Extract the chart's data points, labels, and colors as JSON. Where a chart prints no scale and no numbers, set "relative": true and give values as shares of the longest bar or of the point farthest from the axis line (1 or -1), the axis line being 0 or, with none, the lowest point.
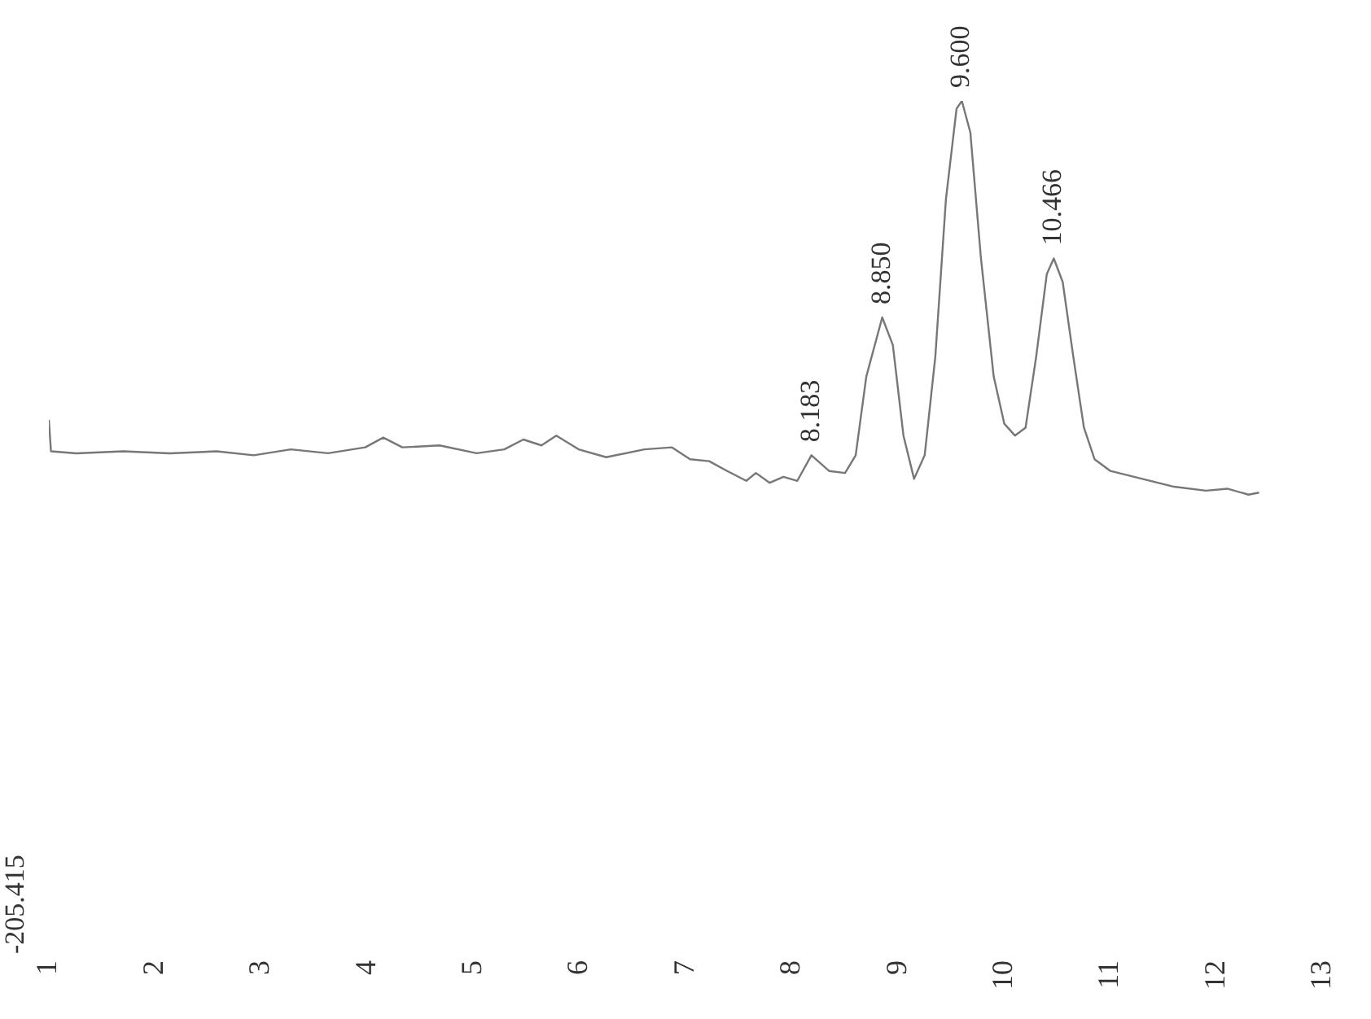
{
  "chart_data": {
    "type": "line",
    "relative": true,
    "color": "#777777",
    "grid": false,
    "tick_labels": "x",
    "marker": "none",
    "xlim": [
      1,
      13
    ],
    "xticks": [
      1,
      2,
      3,
      4,
      5,
      6,
      7,
      8,
      9,
      10,
      11,
      12,
      13
    ],
    "x": [
      1.0,
      1.02,
      1.26,
      1.7,
      2.14,
      2.58,
      2.93,
      3.28,
      3.63,
      3.98,
      4.15,
      4.33,
      4.68,
      5.03,
      5.29,
      5.47,
      5.64,
      5.78,
      5.99,
      6.25,
      6.61,
      6.87,
      7.04,
      7.22,
      7.39,
      7.57,
      7.66,
      7.79,
      7.92,
      8.05,
      8.183,
      8.35,
      8.5,
      8.6,
      8.7,
      8.85,
      8.95,
      9.05,
      9.15,
      9.25,
      9.35,
      9.45,
      9.55,
      9.6,
      9.68,
      9.78,
      9.9,
      10.0,
      10.1,
      10.2,
      10.3,
      10.4,
      10.466,
      10.55,
      10.65,
      10.75,
      10.85,
      11.0,
      11.3,
      11.6,
      11.9,
      12.1,
      12.3,
      12.4
    ],
    "values": [
      0.19,
      0.11,
      0.105,
      0.11,
      0.105,
      0.11,
      0.1,
      0.115,
      0.105,
      0.12,
      0.145,
      0.12,
      0.125,
      0.105,
      0.115,
      0.14,
      0.125,
      0.15,
      0.115,
      0.095,
      0.115,
      0.12,
      0.09,
      0.085,
      0.06,
      0.035,
      0.055,
      0.03,
      0.045,
      0.035,
      0.1,
      0.06,
      0.055,
      0.1,
      0.3,
      0.45,
      0.38,
      0.15,
      0.04,
      0.1,
      0.35,
      0.75,
      0.98,
      1.0,
      0.92,
      0.6,
      0.3,
      0.18,
      0.15,
      0.17,
      0.35,
      0.56,
      0.6,
      0.54,
      0.35,
      0.17,
      0.09,
      0.06,
      0.04,
      0.02,
      0.01,
      0.015,
      0.0,
      0.005
    ],
    "annotations": [
      {
        "text": "8.183",
        "x": 8.183,
        "y": 0.1
      },
      {
        "text": "8.850",
        "x": 8.85,
        "y": 0.45
      },
      {
        "text": "9.600",
        "x": 9.6,
        "y": 1.0
      },
      {
        "text": "10.466",
        "x": 10.466,
        "y": 0.6
      },
      "-205.415"
    ]
  }
}
